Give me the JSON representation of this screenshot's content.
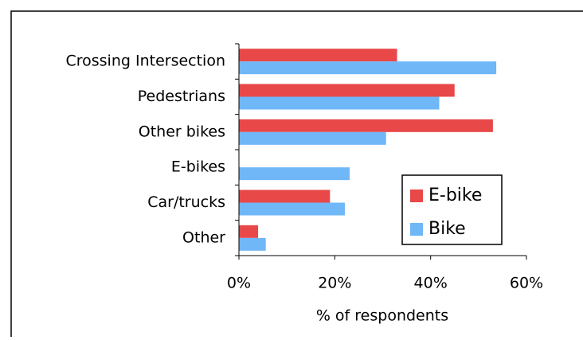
{
  "chart_data": {
    "type": "hbar",
    "xlabel": "% of respondents",
    "categories": [
      "Crossing Intersection",
      "Pedestrians",
      "Other bikes",
      "E-bikes",
      "Car/trucks",
      "Other"
    ],
    "series": [
      {
        "name": "E-bike",
        "color": "#e84848",
        "values": [
          33,
          45,
          53,
          0,
          19,
          4
        ]
      },
      {
        "name": "Bike",
        "color": "#6fb7f7",
        "values": [
          53.7,
          41.8,
          30.7,
          23.1,
          22.1,
          5.6
        ]
      }
    ],
    "xlim": [
      0,
      60
    ],
    "xticks": [
      {
        "value": 0,
        "label": "0%"
      },
      {
        "value": 20,
        "label": "20%"
      },
      {
        "value": 40,
        "label": "40%"
      },
      {
        "value": 60,
        "label": "60%"
      }
    ],
    "legend": "lower right"
  }
}
